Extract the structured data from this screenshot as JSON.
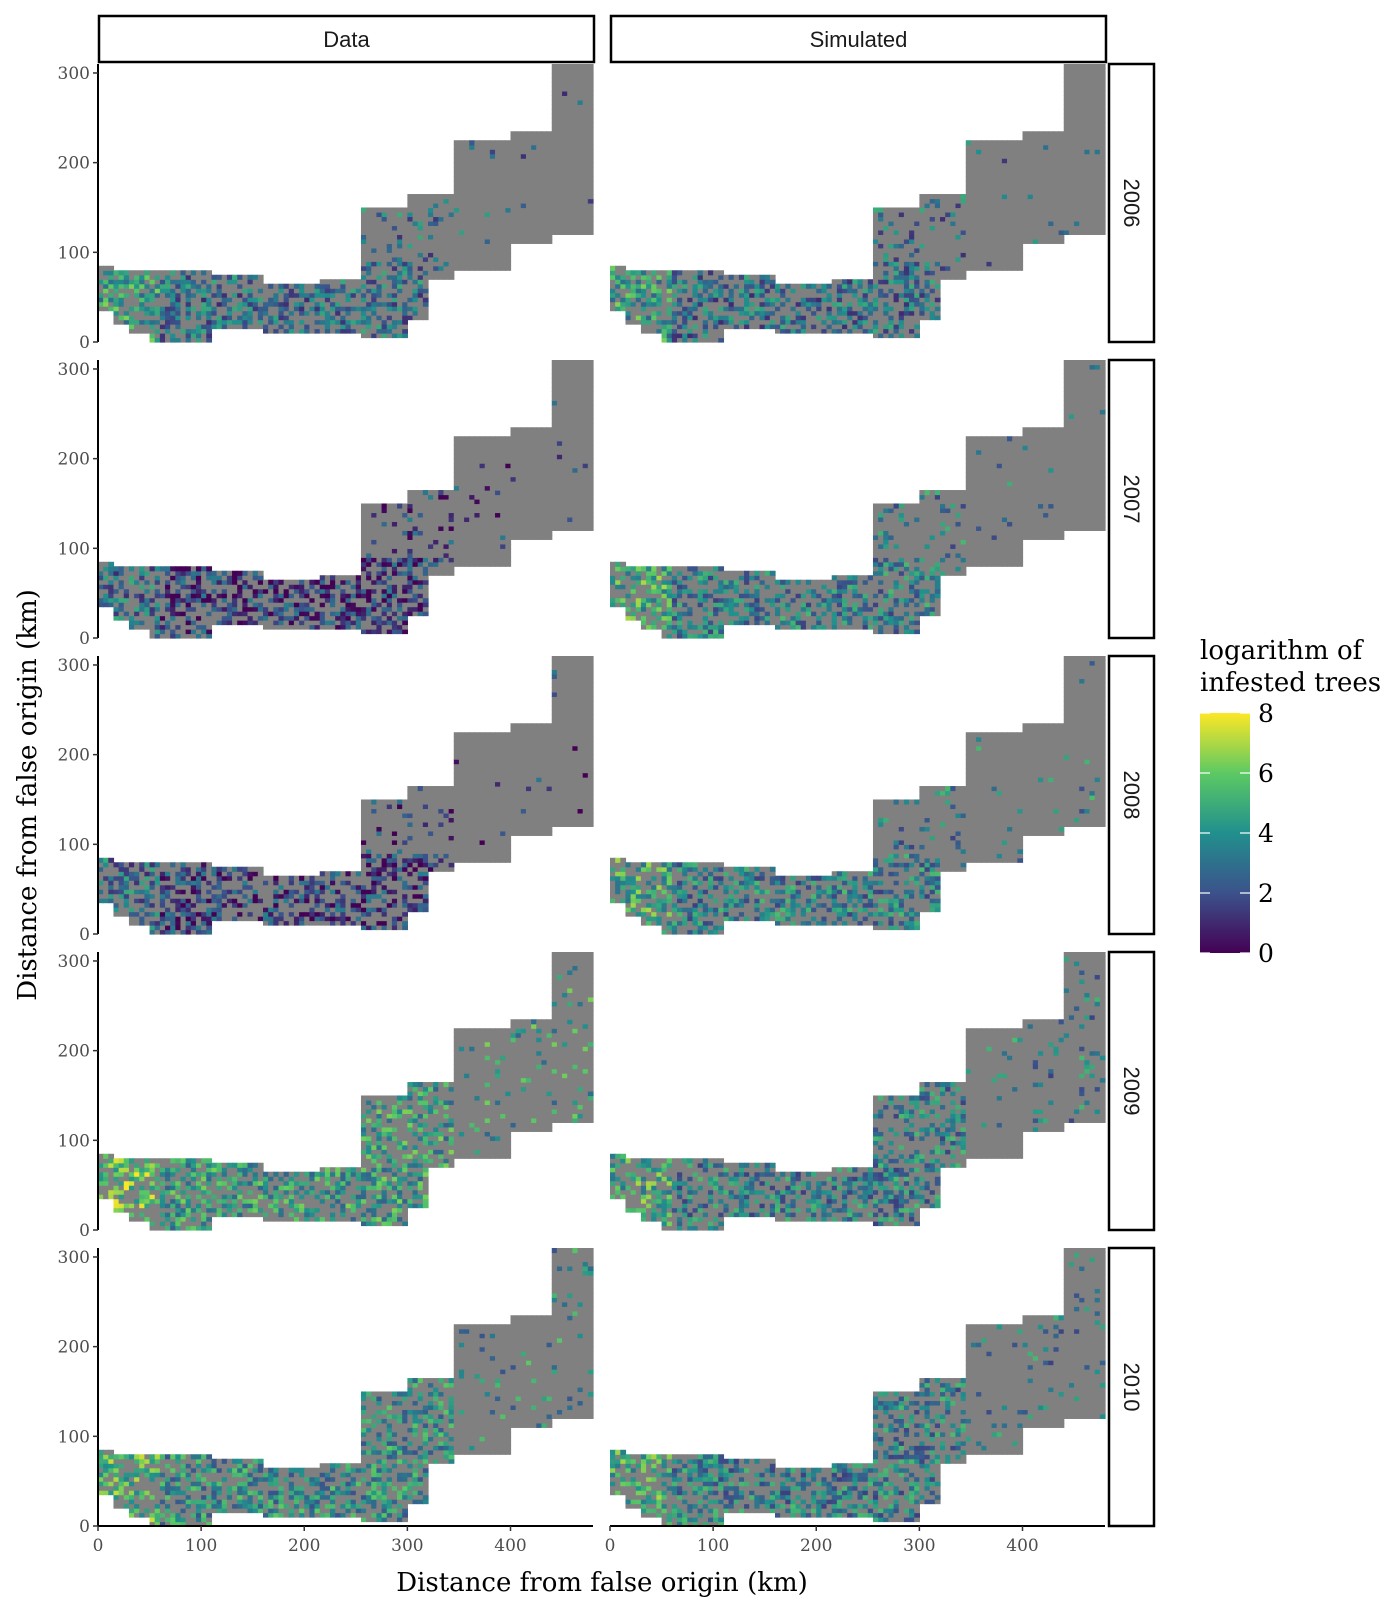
{
  "chart_data": {
    "type": "heatmap",
    "facet_columns": [
      "Data",
      "Simulated"
    ],
    "facet_rows": [
      "2006",
      "2007",
      "2008",
      "2009",
      "2010"
    ],
    "xlabel": "Distance from false origin (km)",
    "ylabel": "Distance from false origin (km)",
    "xlim": [
      0,
      480
    ],
    "ylim": [
      0,
      310
    ],
    "x_ticks": [
      "0",
      "100",
      "200",
      "300",
      "400"
    ],
    "y_ticks": [
      "0",
      "100",
      "200",
      "300"
    ],
    "grid": false,
    "background_color": "#808080",
    "legend": {
      "title_line1": "logarithm of",
      "title_line2": "infested trees",
      "position": "right",
      "min": 0,
      "max": 8,
      "ticks": [
        "0",
        "2",
        "4",
        "6",
        "8"
      ],
      "colors": [
        "#440154",
        "#3b528b",
        "#21908d",
        "#5dc963",
        "#fde725"
      ]
    },
    "approx_mean_log_infested": {
      "Data": {
        "2006": 3.0,
        "2007": 1.5,
        "2008": 1.5,
        "2009": 4.5,
        "2010": 4.0
      },
      "Simulated": {
        "2006": 3.0,
        "2007": 3.5,
        "2008": 3.5,
        "2009": 3.5,
        "2010": 3.5
      }
    }
  }
}
